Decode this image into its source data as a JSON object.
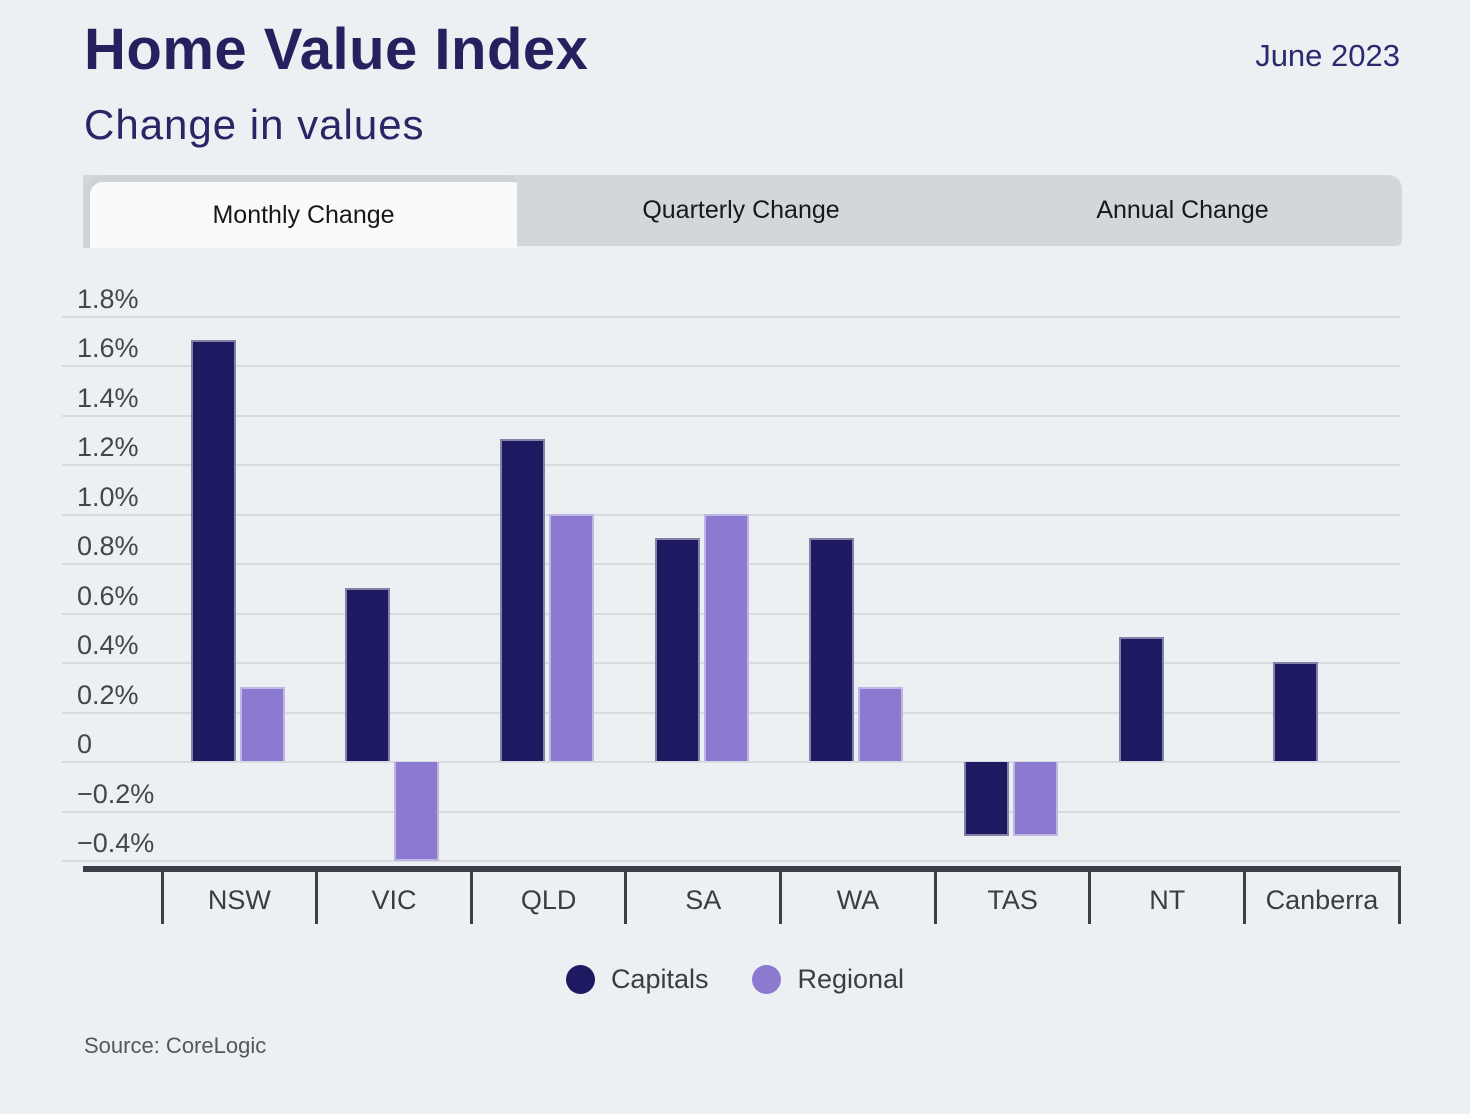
{
  "header": {
    "title": "Home Value Index",
    "date": "June 2023",
    "subtitle": "Change in values"
  },
  "tabs": [
    {
      "label": "Monthly Change",
      "active": true
    },
    {
      "label": "Quarterly Change",
      "active": false
    },
    {
      "label": "Annual Change",
      "active": false
    }
  ],
  "chart_data": {
    "type": "bar",
    "title": "Home Value Index — Change in values (Monthly Change, June 2023)",
    "categories": [
      "NSW",
      "VIC",
      "QLD",
      "SA",
      "WA",
      "TAS",
      "NT",
      "Canberra"
    ],
    "series": [
      {
        "name": "Capitals",
        "color": "#1d1a62",
        "values": [
          1.7,
          0.7,
          1.3,
          0.9,
          0.9,
          -0.3,
          0.5,
          0.4
        ]
      },
      {
        "name": "Regional",
        "color": "#8b7ad0",
        "values": [
          0.3,
          -0.4,
          1.0,
          1.0,
          0.3,
          -0.3,
          null,
          null
        ]
      }
    ],
    "yticks": {
      "values": [
        1.8,
        1.6,
        1.4,
        1.2,
        1.0,
        0.8,
        0.6,
        0.4,
        0.2,
        0,
        -0.2,
        -0.4
      ],
      "labels": [
        "1.8%",
        "1.6%",
        "1.4%",
        "1.2%",
        "1.0%",
        "0.8%",
        "0.6%",
        "0.4%",
        "0.2%",
        "0",
        "−0.2%",
        "−0.4%"
      ]
    },
    "ylim": [
      -0.44,
      1.9
    ],
    "grid": true,
    "legend_position": "bottom"
  },
  "source": "Source: CoreLogic",
  "colors": {
    "background": "#edf0f3",
    "navy_text": "#25215f",
    "capitals_bar": "#1d1a62",
    "regional_bar": "#8b7ad0",
    "gridline": "#d7dade",
    "axis": "#3c3f47",
    "tab_strip": "#d4d7da",
    "active_tab": "#f9fafb"
  }
}
